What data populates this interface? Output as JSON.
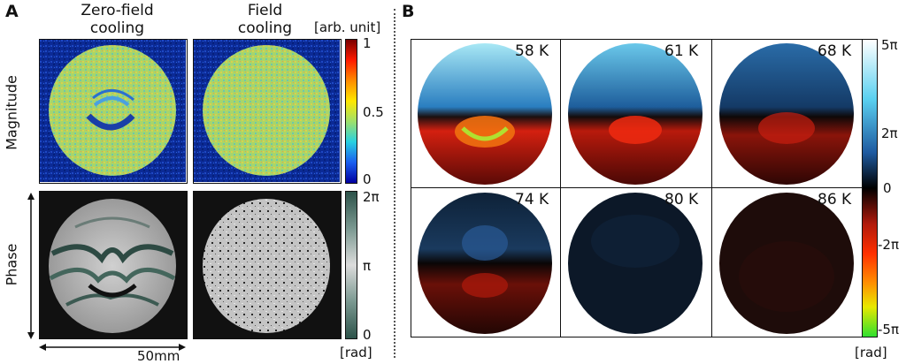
{
  "panel_a": {
    "label": "A",
    "col_headers": [
      {
        "line1": "Zero-field",
        "line2": "cooling"
      },
      {
        "line1": "Field",
        "line2": "cooling"
      }
    ],
    "row_labels": [
      "Magnitude",
      "Phase"
    ],
    "magnitude_colorbar": {
      "unit": "[arb. unit]",
      "ticks": [
        "1",
        "0.5",
        "0"
      ]
    },
    "phase_colorbar": {
      "unit": "[rad]",
      "ticks": [
        "2π",
        "π",
        "0"
      ]
    },
    "scale_bar": "50mm"
  },
  "panel_b": {
    "label": "B",
    "temperatures": [
      "58 K",
      "61 K",
      "68 K",
      "74 K",
      "80 K",
      "86 K"
    ],
    "colorbar": {
      "unit": "[rad]",
      "ticks": [
        "5π",
        "2π",
        "0",
        "-2π",
        "-5π"
      ]
    }
  },
  "colors": {
    "magnitude_green": "#a6d46a",
    "magnitude_blue": "#0a2a9a",
    "phase_gray": "#c8c8c8",
    "phase_dark": "#1e3a34",
    "b_top_cyan": "#4fc0ea",
    "b_bottom_red": "#e0301a"
  }
}
